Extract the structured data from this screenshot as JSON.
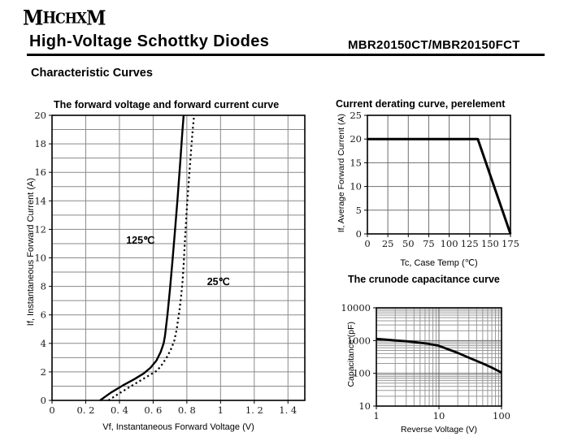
{
  "header": {
    "logo": "MHCHXM",
    "title": "High-Voltage Schottky Diodes",
    "part_number": "MBR20150CT/MBR20150FCT"
  },
  "section_title": "Characteristic Curves",
  "chart_data": [
    {
      "type": "line",
      "title": "The forward voltage and forward current curve",
      "xlabel": "Vf, Instantaneous Forward Voltage (V)",
      "ylabel": "If, Instantaneous Forward Current (A)",
      "xscale": "linear",
      "yscale": "linear",
      "xlim": [
        0,
        1.5
      ],
      "ylim": [
        0,
        20
      ],
      "grid": {
        "x_major": [
          0.2,
          0.4,
          0.6,
          0.8,
          1.0,
          1.2,
          1.4
        ],
        "x_minor": [],
        "y_major": [
          1,
          2,
          3,
          4,
          5,
          6,
          7,
          8,
          9,
          10,
          11,
          12,
          13,
          14,
          15,
          16,
          17,
          18,
          19
        ],
        "y_minor": []
      },
      "xticks": [
        {
          "v": 0,
          "t": "0"
        },
        {
          "v": 0.2,
          "t": "0. 2"
        },
        {
          "v": 0.4,
          "t": "0. 4"
        },
        {
          "v": 0.6,
          "t": "0. 6"
        },
        {
          "v": 0.8,
          "t": "0. 8"
        },
        {
          "v": 1,
          "t": "1"
        },
        {
          "v": 1.2,
          "t": "1. 2"
        },
        {
          "v": 1.4,
          "t": "1. 4"
        }
      ],
      "yticks": [
        {
          "v": 0,
          "t": "0"
        },
        {
          "v": 2,
          "t": "2"
        },
        {
          "v": 4,
          "t": "4"
        },
        {
          "v": 6,
          "t": "6"
        },
        {
          "v": 8,
          "t": "8"
        },
        {
          "v": 10,
          "t": "10"
        },
        {
          "v": 12,
          "t": "12"
        },
        {
          "v": 14,
          "t": "14"
        },
        {
          "v": 16,
          "t": "16"
        },
        {
          "v": 18,
          "t": "18"
        },
        {
          "v": 20,
          "t": "20"
        }
      ],
      "series": [
        {
          "name": "125C-curve",
          "label": "125℃",
          "dash": "",
          "width": 2.4,
          "points": [
            [
              0.285,
              0
            ],
            [
              0.35,
              0.55
            ],
            [
              0.42,
              1.05
            ],
            [
              0.49,
              1.5
            ],
            [
              0.545,
              1.9
            ],
            [
              0.585,
              2.3
            ],
            [
              0.62,
              2.8
            ],
            [
              0.645,
              3.4
            ],
            [
              0.662,
              4.0
            ],
            [
              0.67,
              4.5
            ],
            [
              0.685,
              6
            ],
            [
              0.7,
              7.8
            ],
            [
              0.715,
              9.8
            ],
            [
              0.73,
              12
            ],
            [
              0.745,
              14.2
            ],
            [
              0.76,
              16.6
            ],
            [
              0.773,
              18.8
            ],
            [
              0.781,
              20
            ]
          ]
        },
        {
          "name": "25C-curve",
          "label": "25℃",
          "dash": "2.2,3.4",
          "width": 2.2,
          "points": [
            [
              0.335,
              0
            ],
            [
              0.4,
              0.5
            ],
            [
              0.47,
              1.0
            ],
            [
              0.54,
              1.5
            ],
            [
              0.59,
              1.85
            ],
            [
              0.625,
              2.1
            ],
            [
              0.655,
              2.55
            ],
            [
              0.685,
              3.1
            ],
            [
              0.71,
              3.7
            ],
            [
              0.726,
              4.2
            ],
            [
              0.74,
              5
            ],
            [
              0.755,
              6.2
            ],
            [
              0.766,
              7.3
            ],
            [
              0.774,
              8.3
            ],
            [
              0.781,
              9.5
            ],
            [
              0.79,
              11.5
            ],
            [
              0.8,
              13.5
            ],
            [
              0.812,
              15.5
            ],
            [
              0.825,
              17.5
            ],
            [
              0.835,
              19
            ],
            [
              0.843,
              20
            ]
          ]
        }
      ],
      "annotations": [
        {
          "text": "125℃",
          "x": 0.44,
          "y": 11.0
        },
        {
          "text": "25℃",
          "x": 0.92,
          "y": 8.1
        }
      ]
    },
    {
      "type": "line",
      "title": "Current derating curve, perelement",
      "xlabel": "Tc, Case Temp (℃)",
      "ylabel": "If, Average Forward Current (A)",
      "xscale": "linear",
      "yscale": "linear",
      "xlim": [
        0,
        175
      ],
      "ylim": [
        0,
        25
      ],
      "grid": {
        "x_major": [
          25,
          50,
          75,
          100,
          125,
          150,
          175
        ],
        "x_minor": [],
        "y_major": [
          5,
          10,
          15,
          20
        ],
        "y_minor": []
      },
      "xticks": [
        {
          "v": 0,
          "t": "0"
        },
        {
          "v": 25,
          "t": "25"
        },
        {
          "v": 50,
          "t": "50"
        },
        {
          "v": 75,
          "t": "75"
        },
        {
          "v": 100,
          "t": "100"
        },
        {
          "v": 125,
          "t": "125"
        },
        {
          "v": 150,
          "t": "150"
        },
        {
          "v": 175,
          "t": "175"
        }
      ],
      "yticks": [
        {
          "v": 0,
          "t": "0"
        },
        {
          "v": 5,
          "t": "5"
        },
        {
          "v": 10,
          "t": "10"
        },
        {
          "v": 15,
          "t": "15"
        },
        {
          "v": 20,
          "t": "20"
        },
        {
          "v": 25,
          "t": "25"
        }
      ],
      "series": [
        {
          "name": "derating-curve",
          "label": "",
          "dash": "",
          "width": 3,
          "points": [
            [
              0,
              20
            ],
            [
              135,
              20
            ],
            [
              175,
              0
            ]
          ]
        }
      ],
      "annotations": []
    },
    {
      "type": "line",
      "title": "The crunode capacitance curve",
      "xlabel": "Reverse Voltage (V)",
      "ylabel": "Capacitance (pF)",
      "xscale": "log",
      "yscale": "log",
      "xlim": [
        1,
        100
      ],
      "ylim": [
        10,
        10000
      ],
      "grid": {
        "x_major": [
          10
        ],
        "x_minor": [
          2,
          3,
          4,
          5,
          6,
          7,
          8,
          9,
          20,
          30,
          40,
          50,
          60,
          70,
          80,
          90
        ],
        "y_major": [
          100,
          1000
        ],
        "y_minor": [
          20,
          30,
          40,
          50,
          60,
          70,
          80,
          90,
          200,
          300,
          400,
          500,
          600,
          700,
          800,
          900,
          2000,
          3000,
          4000,
          5000,
          6000,
          7000,
          8000,
          9000
        ]
      },
      "xticks": [
        {
          "v": 1,
          "t": "1"
        },
        {
          "v": 10,
          "t": "10"
        },
        {
          "v": 100,
          "t": "100"
        }
      ],
      "yticks": [
        {
          "v": 10,
          "t": "10"
        },
        {
          "v": 100,
          "t": "100"
        },
        {
          "v": 1000,
          "t": "1000"
        },
        {
          "v": 10000,
          "t": "10000"
        }
      ],
      "series": [
        {
          "name": "capacitance-curve",
          "label": "",
          "dash": "",
          "width": 2.8,
          "points": [
            [
              1,
              1120
            ],
            [
              1.5,
              1060
            ],
            [
              2,
              1010
            ],
            [
              3,
              950
            ],
            [
              4,
              900
            ],
            [
              5,
              860
            ],
            [
              7,
              790
            ],
            [
              10,
              690
            ],
            [
              14,
              540
            ],
            [
              20,
              420
            ],
            [
              30,
              300
            ],
            [
              50,
              200
            ],
            [
              70,
              150
            ],
            [
              100,
              105
            ]
          ]
        }
      ],
      "annotations": []
    }
  ]
}
